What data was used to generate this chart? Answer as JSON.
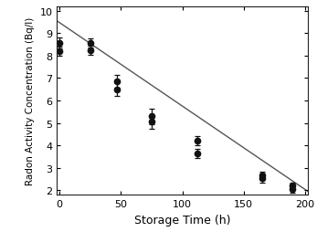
{
  "x": [
    0,
    0,
    25,
    25,
    47,
    47,
    75,
    75,
    112,
    112,
    165,
    165,
    190,
    190
  ],
  "y": [
    8.55,
    8.2,
    8.55,
    8.25,
    6.85,
    6.5,
    5.3,
    5.05,
    4.2,
    3.65,
    2.65,
    2.55,
    2.2,
    2.05
  ],
  "yerr": [
    0.25,
    0.2,
    0.2,
    0.2,
    0.3,
    0.3,
    0.35,
    0.3,
    0.2,
    0.2,
    0.18,
    0.2,
    0.15,
    0.18
  ],
  "fit_x": [
    -5,
    205
  ],
  "fit_y": [
    9.65,
    1.85
  ],
  "xlabel": "Storage Time (h)",
  "ylabel": "Radon Activity Concentration (Bq/l)",
  "xlim": [
    -2,
    202
  ],
  "ylim": [
    1.8,
    10.2
  ],
  "xticks": [
    0,
    50,
    100,
    150,
    200
  ],
  "yticks": [
    2,
    3,
    4,
    5,
    6,
    7,
    8,
    9,
    10
  ],
  "marker_color": "#111111",
  "line_color": "#555555",
  "marker_size": 4.5,
  "xlabel_fontsize": 9,
  "ylabel_fontsize": 7.5,
  "tick_labelsize": 8
}
